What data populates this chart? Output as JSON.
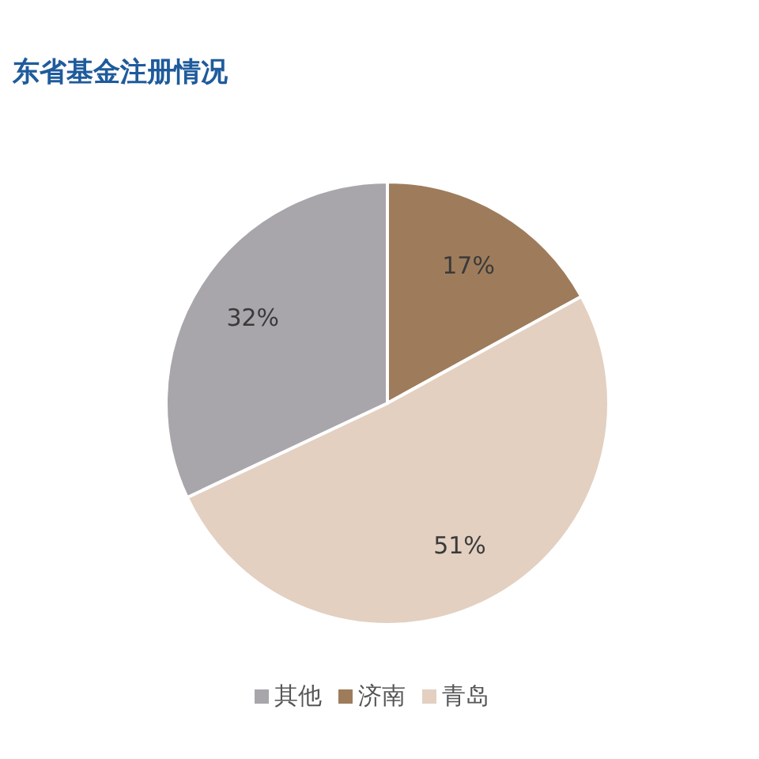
{
  "chart_data": {
    "type": "pie",
    "title": "东省基金注册情况",
    "categories": [
      "济南",
      "青岛",
      "其他"
    ],
    "values": [
      17,
      51,
      32
    ],
    "value_labels": [
      "17%",
      "51%",
      "32%"
    ],
    "colors": [
      "#9e7c5b",
      "#e3d0c1",
      "#a8a6ab"
    ],
    "legend": "bottom"
  }
}
